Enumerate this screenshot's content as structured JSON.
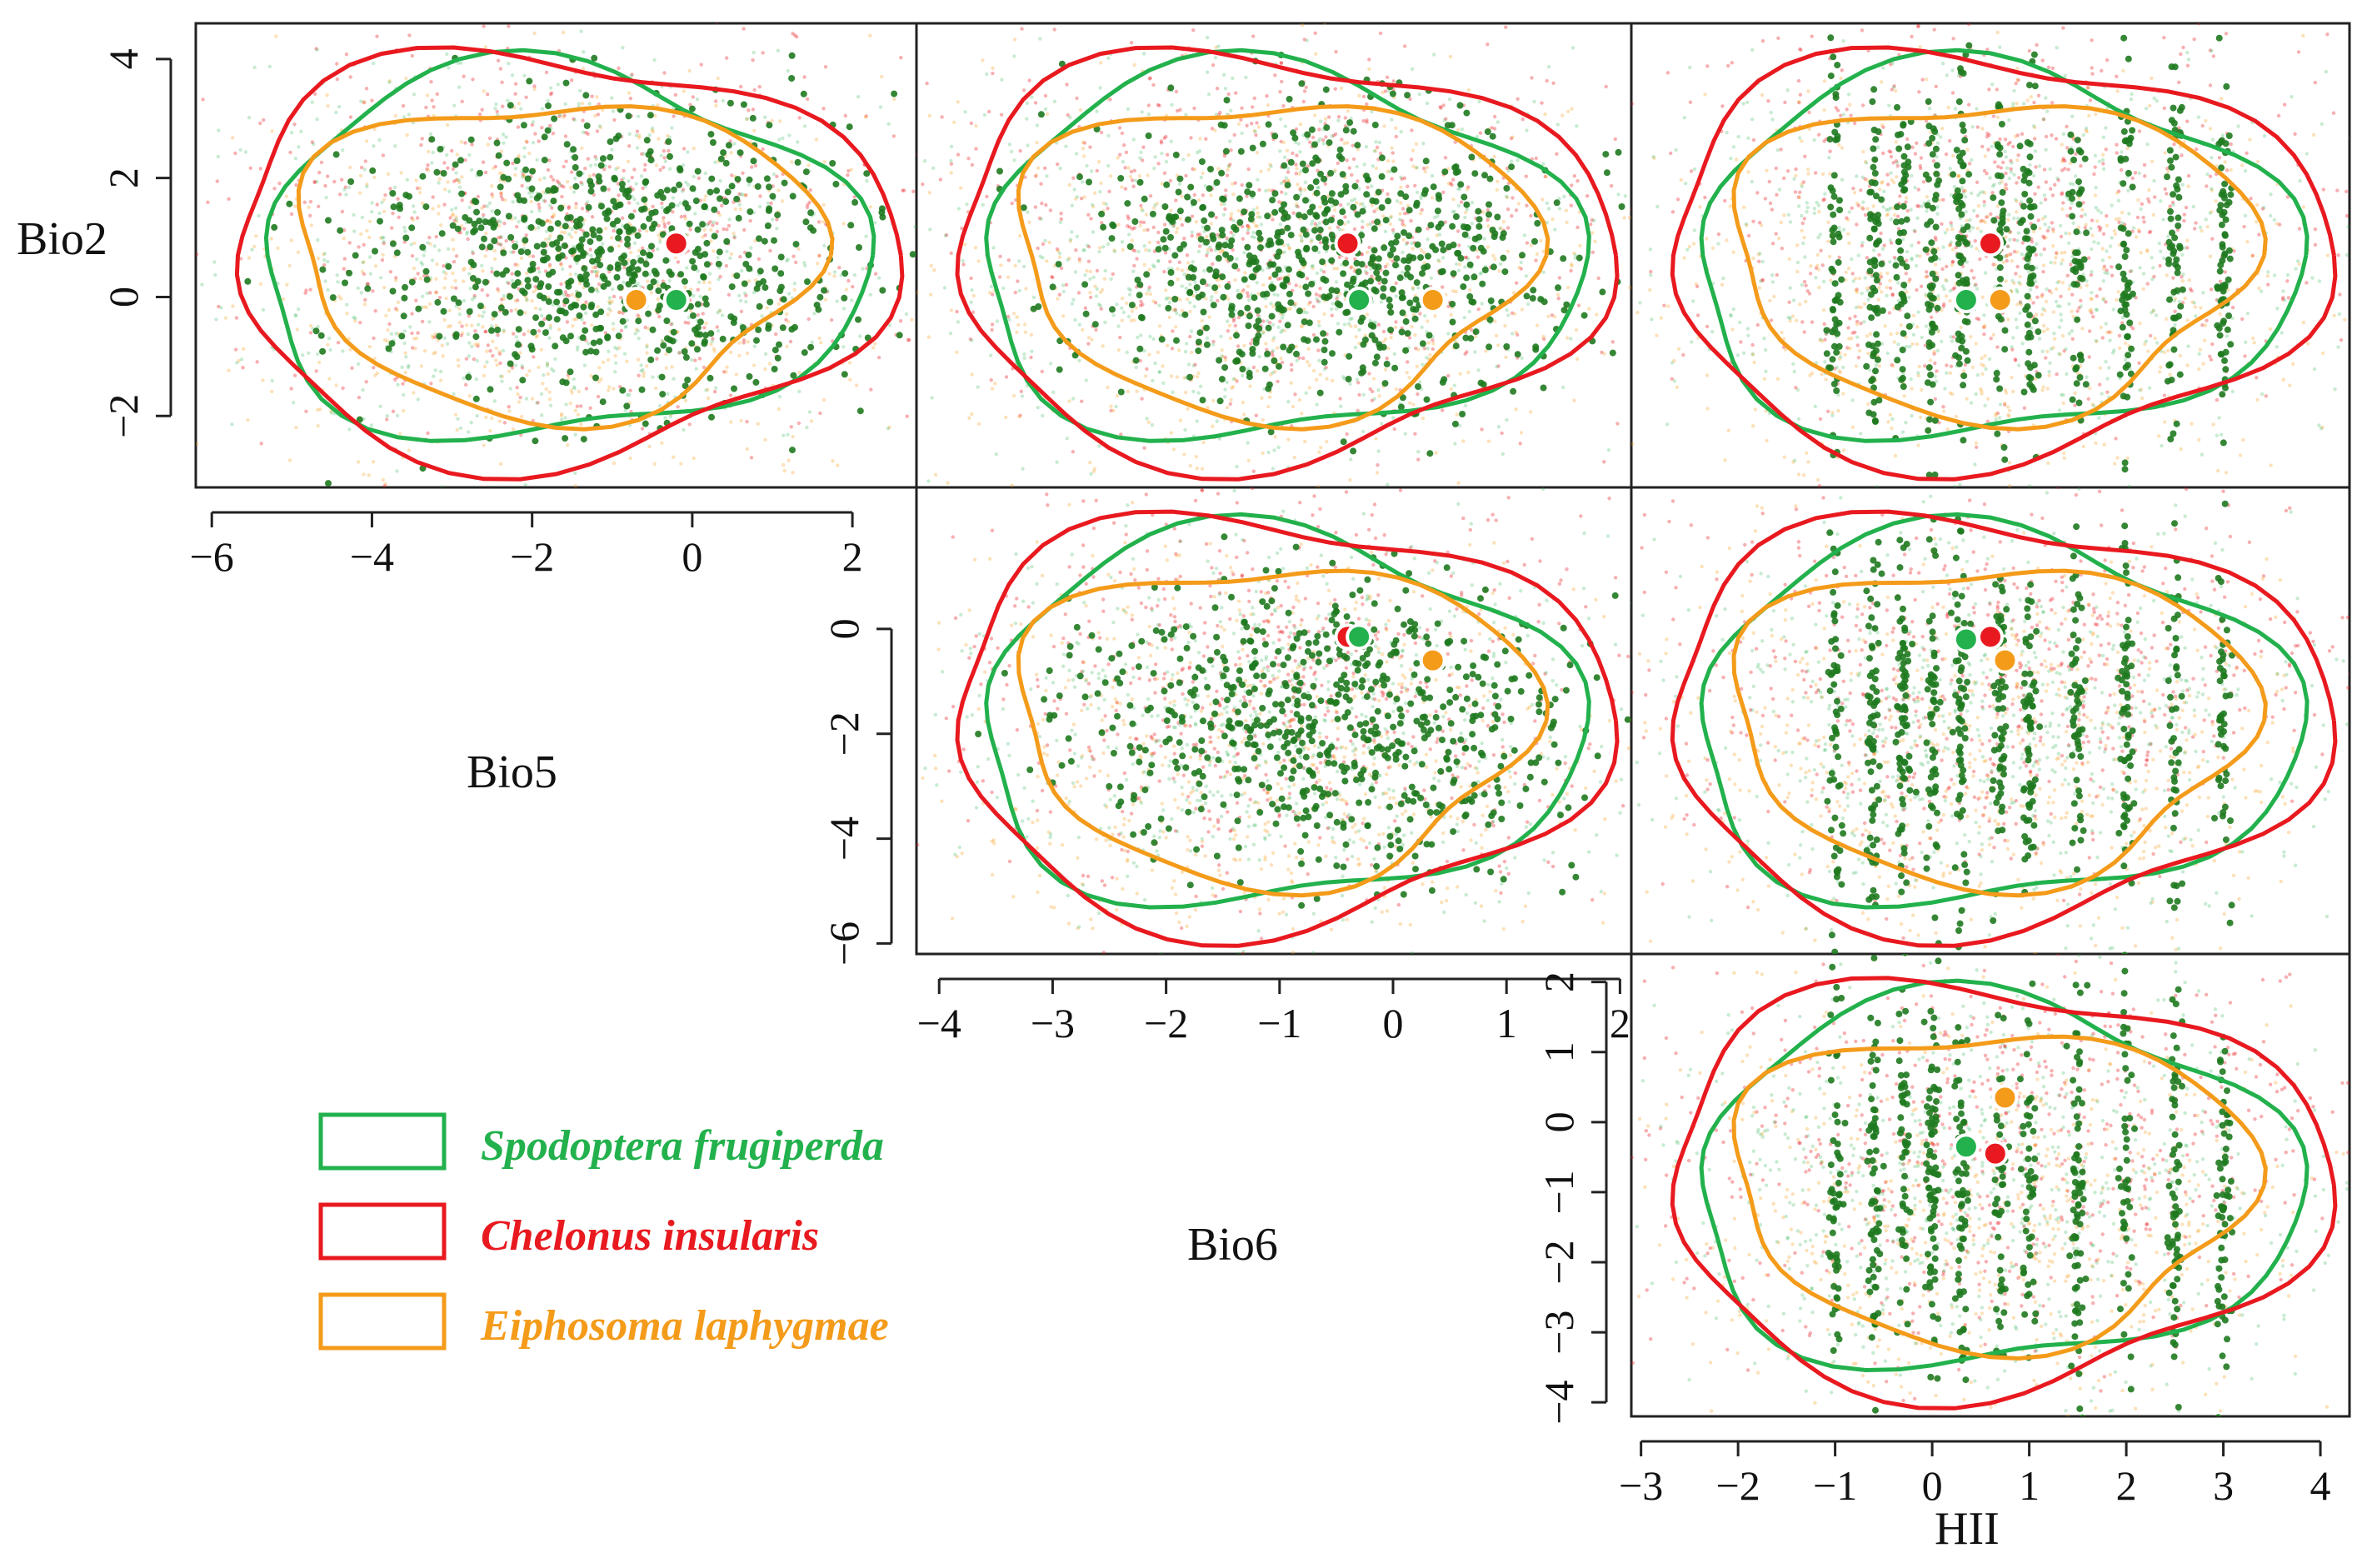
{
  "figure": {
    "variables": [
      "Bio2",
      "Bio5",
      "Bio6",
      "HII"
    ]
  },
  "colors": {
    "spodoptera": "#22b14c",
    "spodoptera_dark": "#1f7a1f",
    "chelonus": "#e8191f",
    "eiphosoma": "#f49b1a",
    "frame": "#222222"
  },
  "legend": [
    {
      "species": "Spodoptera frugiperda",
      "color_key": "spodoptera"
    },
    {
      "species": "Chelonus insularis",
      "color_key": "chelonus"
    },
    {
      "species": "Eiphosoma laphygmae",
      "color_key": "eiphosoma"
    }
  ],
  "chart_data": [
    {
      "type": "scatter",
      "panel": "Bio5 vs Bio2",
      "xlabel": "Bio5",
      "ylabel": "Bio2",
      "xlim": [
        -6.2,
        2.8
      ],
      "ylim": [
        -3.2,
        4.6
      ],
      "xticks": [
        "−6",
        "−4",
        "−2",
        "0",
        "2"
      ],
      "xtick_values": [
        -6,
        -4,
        -2,
        0,
        2
      ],
      "yticks": [
        "−2",
        "0",
        "2",
        "4"
      ],
      "ytick_values": [
        -2,
        0,
        2,
        4
      ],
      "centroids": [
        {
          "species": "Chelonus insularis",
          "x": -0.2,
          "y": 0.9
        },
        {
          "species": "Eiphosoma laphygmae",
          "x": -0.7,
          "y": -0.05
        },
        {
          "species": "Spodoptera frugiperda",
          "x": -0.2,
          "y": -0.05
        }
      ]
    },
    {
      "type": "scatter",
      "panel": "Bio6 vs Bio2",
      "xlabel": "Bio6",
      "ylabel": "Bio2",
      "xlim": [
        -4.2,
        2.1
      ],
      "ylim": [
        -3.2,
        4.6
      ],
      "centroids": [
        {
          "species": "Chelonus insularis",
          "x": -0.4,
          "y": 0.9
        },
        {
          "species": "Eiphosoma laphygmae",
          "x": 0.35,
          "y": -0.05
        },
        {
          "species": "Spodoptera frugiperda",
          "x": -0.3,
          "y": -0.05
        }
      ]
    },
    {
      "type": "scatter",
      "panel": "HII vs Bio2",
      "xlabel": "HII",
      "ylabel": "Bio2",
      "xlim": [
        -3.1,
        4.3
      ],
      "ylim": [
        -3.2,
        4.6
      ],
      "centroids": [
        {
          "species": "Chelonus insularis",
          "x": 0.6,
          "y": 0.9
        },
        {
          "species": "Eiphosoma laphygmae",
          "x": 0.7,
          "y": -0.05
        },
        {
          "species": "Spodoptera frugiperda",
          "x": 0.35,
          "y": -0.05
        }
      ]
    },
    {
      "type": "scatter",
      "panel": "Bio6 vs Bio5",
      "xlabel": "Bio6",
      "ylabel": "Bio5",
      "xlim": [
        -4.2,
        2.1
      ],
      "ylim": [
        -6.2,
        2.7
      ],
      "xticks": [
        "−4",
        "−3",
        "−2",
        "−1",
        "0",
        "1",
        "2"
      ],
      "xtick_values": [
        -4,
        -3,
        -2,
        -1,
        0,
        1,
        2
      ],
      "yticks": [
        "−6",
        "−4",
        "−2",
        "0"
      ],
      "ytick_values": [
        -6,
        -4,
        -2,
        0
      ],
      "centroids": [
        {
          "species": "Chelonus insularis",
          "x": -0.4,
          "y": -0.15
        },
        {
          "species": "Eiphosoma laphygmae",
          "x": 0.35,
          "y": -0.6
        },
        {
          "species": "Spodoptera frugiperda",
          "x": -0.3,
          "y": -0.15
        }
      ]
    },
    {
      "type": "scatter",
      "panel": "HII vs Bio5",
      "xlabel": "HII",
      "ylabel": "Bio5",
      "xlim": [
        -3.1,
        4.3
      ],
      "ylim": [
        -6.2,
        2.7
      ],
      "centroids": [
        {
          "species": "Chelonus insularis",
          "x": 0.6,
          "y": -0.15
        },
        {
          "species": "Eiphosoma laphygmae",
          "x": 0.75,
          "y": -0.6
        },
        {
          "species": "Spodoptera frugiperda",
          "x": 0.35,
          "y": -0.2
        }
      ]
    },
    {
      "type": "scatter",
      "panel": "HII vs Bio6",
      "xlabel": "HII",
      "ylabel": "Bio6",
      "xlim": [
        -3.1,
        4.3
      ],
      "ylim": [
        -4.2,
        2.4
      ],
      "xticks": [
        "−3",
        "−2",
        "−1",
        "0",
        "1",
        "2",
        "3",
        "4"
      ],
      "xtick_values": [
        -3,
        -2,
        -1,
        0,
        1,
        2,
        3,
        4
      ],
      "yticks": [
        "−4",
        "−3",
        "−2",
        "−1",
        "0",
        "1",
        "2"
      ],
      "ytick_values": [
        -4,
        -3,
        -2,
        -1,
        0,
        1,
        2
      ],
      "centroids": [
        {
          "species": "Eiphosoma laphygmae",
          "x": 0.75,
          "y": 0.35
        },
        {
          "species": "Spodoptera frugiperda",
          "x": 0.35,
          "y": -0.35
        },
        {
          "species": "Chelonus insularis",
          "x": 0.65,
          "y": -0.45
        }
      ]
    }
  ]
}
